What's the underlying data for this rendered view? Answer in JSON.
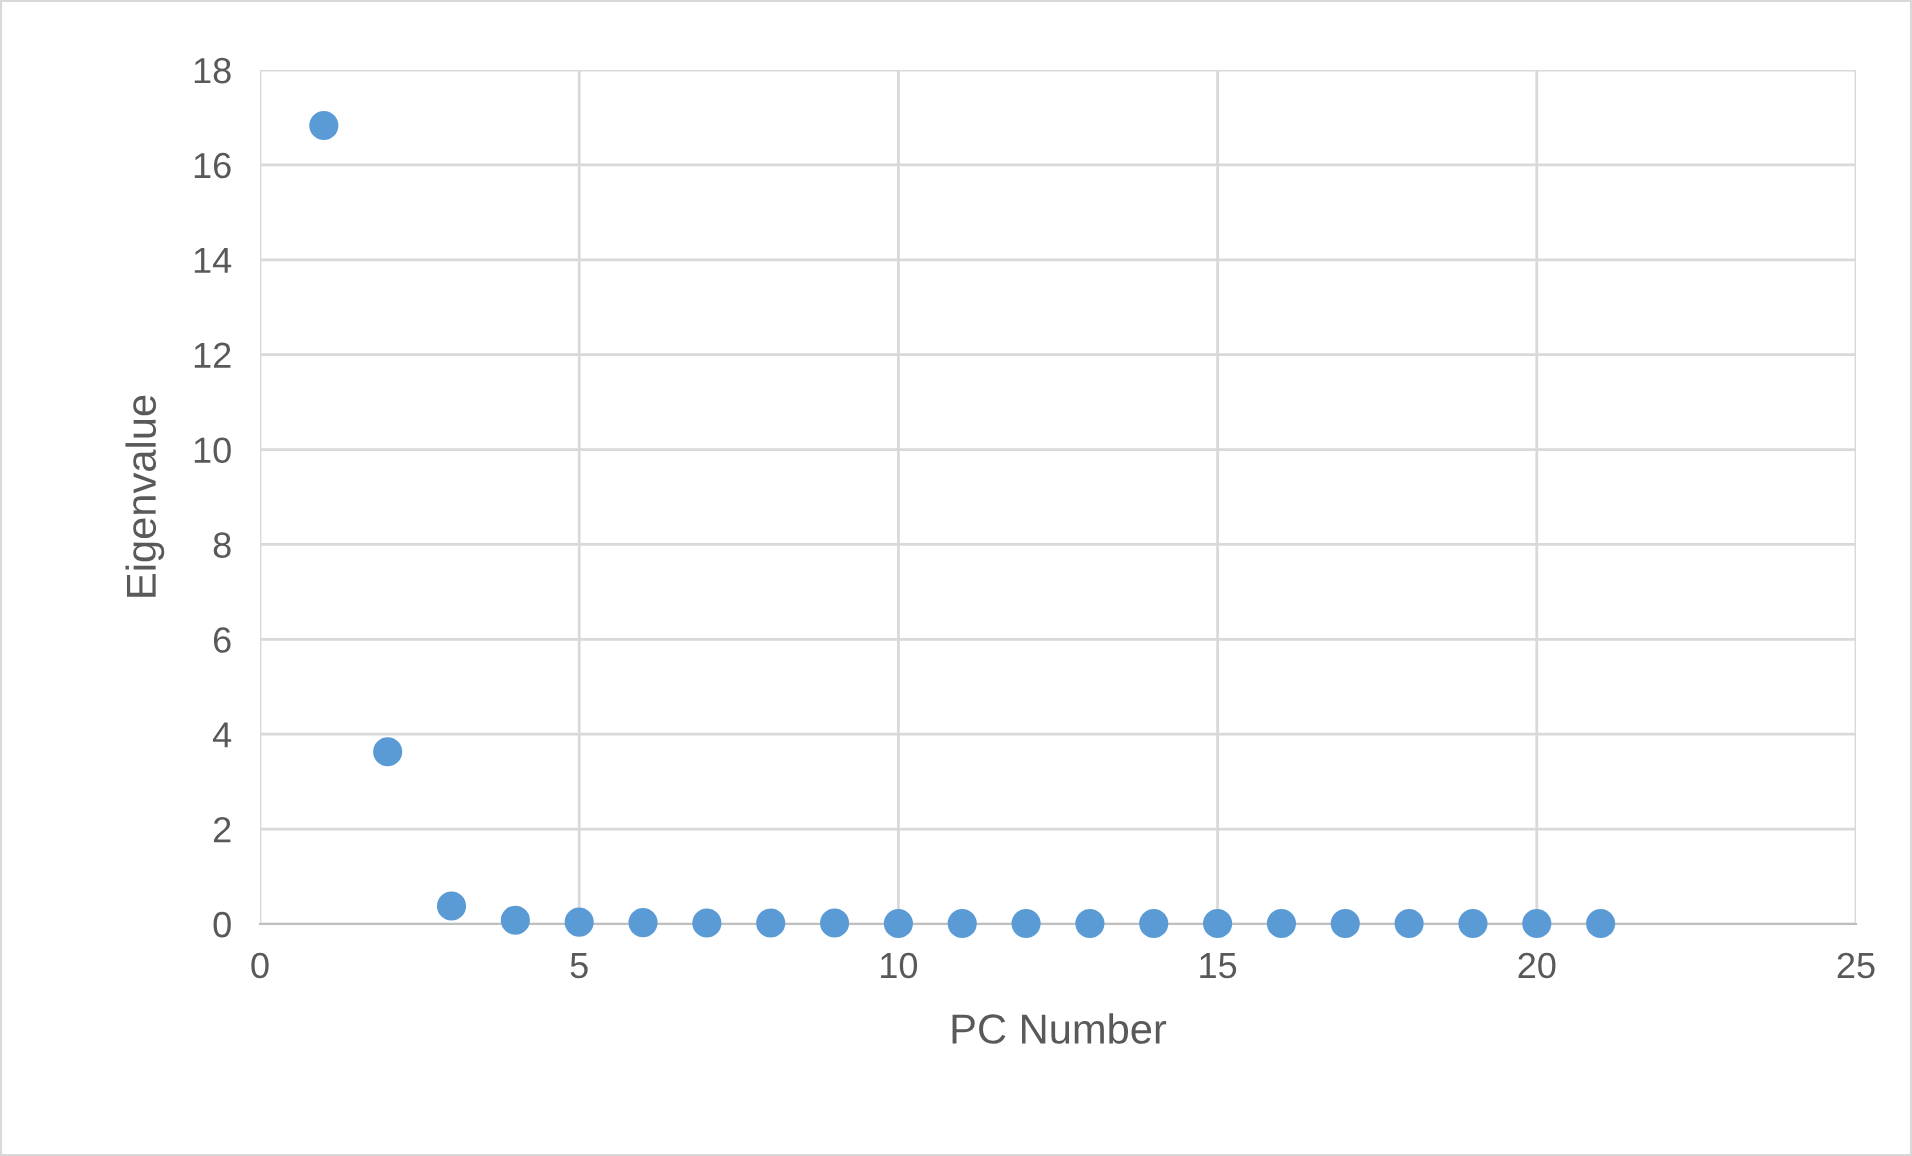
{
  "chart_data": {
    "type": "scatter",
    "xlabel": "PC Number",
    "ylabel": "Eigenvalue",
    "x": [
      1,
      2,
      3,
      4,
      5,
      6,
      7,
      8,
      9,
      10,
      11,
      12,
      13,
      14,
      15,
      16,
      17,
      18,
      19,
      20,
      21
    ],
    "values": [
      16.83,
      3.63,
      0.38,
      0.08,
      0.04,
      0.03,
      0.02,
      0.02,
      0.02,
      0.01,
      0.01,
      0.01,
      0.01,
      0.01,
      0.01,
      0.01,
      0.01,
      0.01,
      0.01,
      0.01,
      0.01
    ],
    "color": "#5b9bd5",
    "marker": "circle",
    "xlim": [
      0,
      25
    ],
    "xticks": [
      0,
      5,
      10,
      15,
      20,
      25
    ],
    "ylim": [
      0,
      18
    ],
    "yticks": [
      0,
      2,
      4,
      6,
      8,
      10,
      12,
      14,
      16,
      18
    ],
    "grid": true
  }
}
